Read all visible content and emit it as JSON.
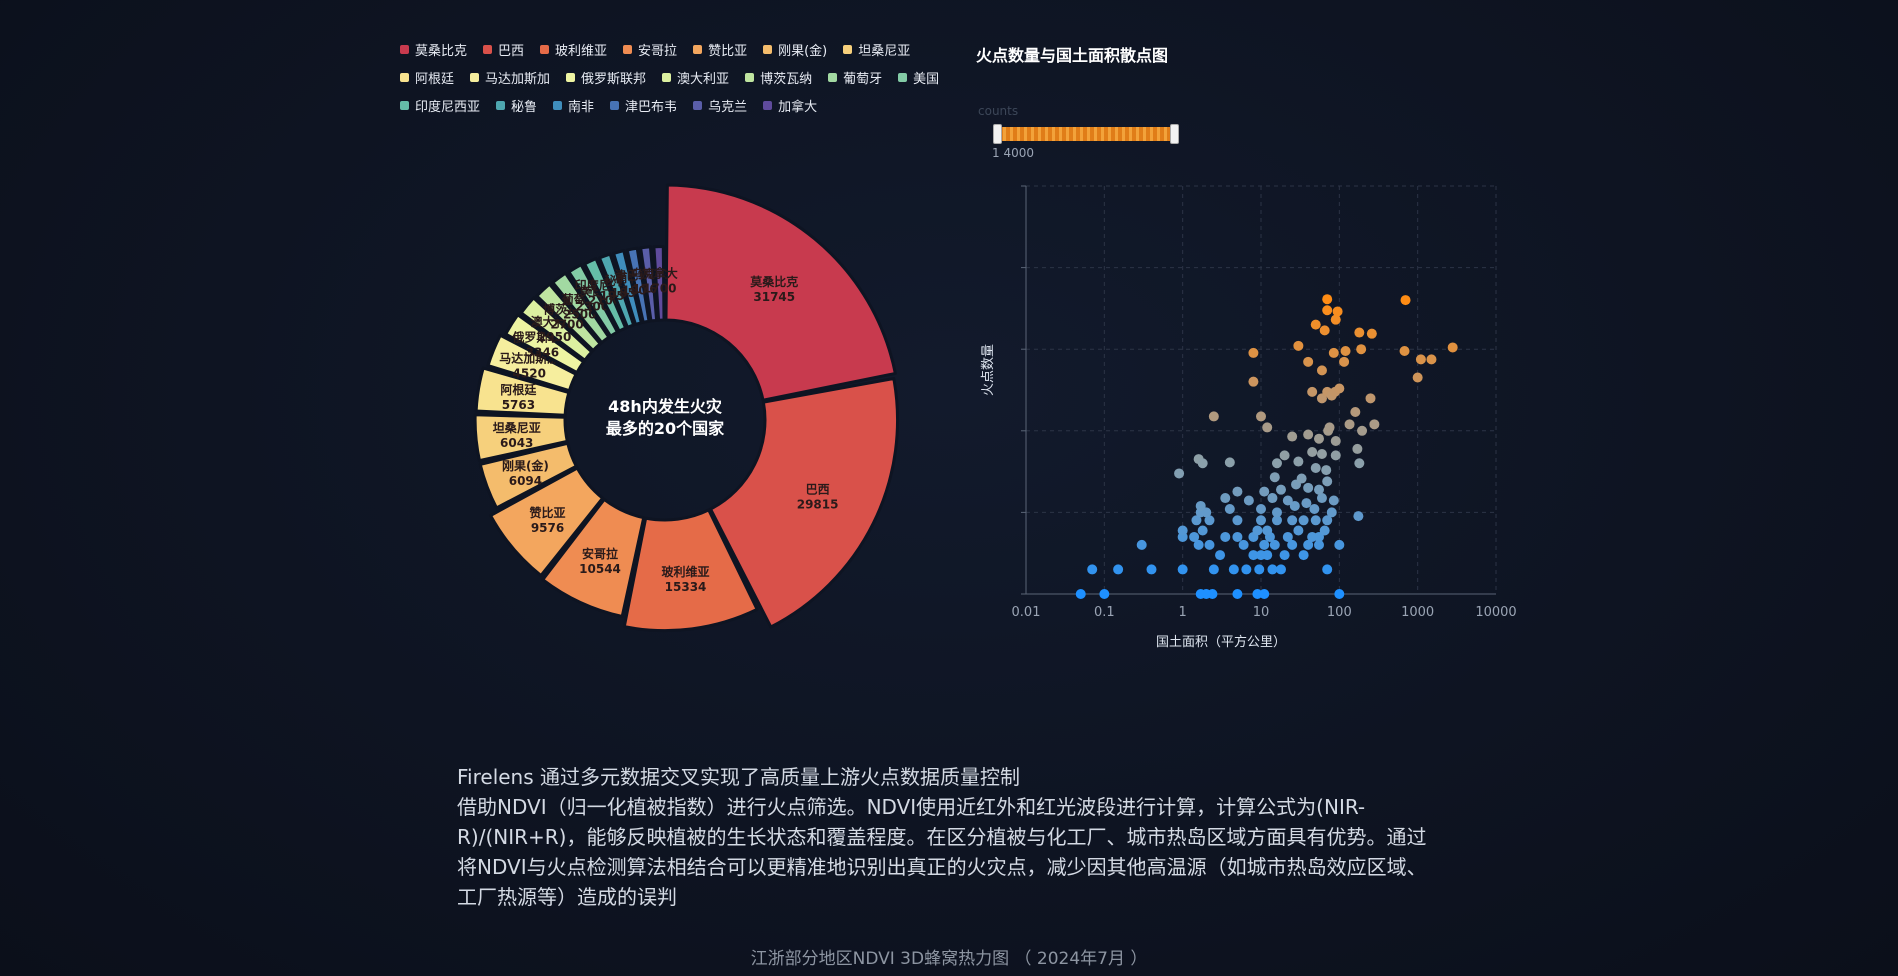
{
  "donut": {
    "center_title": "48h内发生火灾最多的20个国家",
    "center_title_line1": "48h内发生火灾",
    "center_title_line2": "最多的20个国家"
  },
  "scatter": {
    "title": "火点数量与国土面积散点图",
    "visual_map_label": "counts",
    "visual_map_range_text": "1 4000"
  },
  "description": {
    "line1": "Firelens 通过多元数据交叉实现了高质量上游火点数据质量控制",
    "paragraph": "借助NDVI（归一化植被指数）进行火点筛选。NDVI使用近红外和红光波段进行计算，计算公式为(NIR-R)/(NIR+R)，能够反映植被的生长状态和覆盖程度。在区分植被与化工厂、城市热岛区域方面具有优势。通过将NDVI与火点检测算法相结合可以更精准地识别出真正的火灾点，减少因其他高温源（如城市热岛效应区域、工厂热源等）造成的误判"
  },
  "footer": {
    "caption": "江浙部分地区NDVI 3D蜂窝热力图 （ 2024年7月 ）"
  },
  "chart_data": [
    {
      "type": "pie",
      "variant": "rose-donut",
      "legend_placement": "top-left",
      "legend": [
        "莫桑比克",
        "巴西",
        "玻利维亚",
        "安哥拉",
        "赞比亚",
        "刚果(金)",
        "坦桑尼亚",
        "阿根廷",
        "马达加斯加",
        "俄罗斯联邦",
        "澳大利亚",
        "博茨瓦纳",
        "葡萄牙",
        "美国",
        "印度尼西亚",
        "秘鲁",
        "南非",
        "津巴布韦",
        "乌克兰",
        "加拿大"
      ],
      "slices": [
        {
          "name": "莫桑比克",
          "value": 31745,
          "color": "#c83a4e"
        },
        {
          "name": "巴西",
          "value": 29815,
          "color": "#d9514a"
        },
        {
          "name": "玻利维亚",
          "value": 15334,
          "color": "#e56b48"
        },
        {
          "name": "安哥拉",
          "value": 10544,
          "color": "#ef8c52"
        },
        {
          "name": "赞比亚",
          "value": 9576,
          "color": "#f3a65e"
        },
        {
          "name": "刚果(金)",
          "value": 6094,
          "color": "#f4bc6c"
        },
        {
          "name": "坦桑尼亚",
          "value": 6043,
          "color": "#f6d07c"
        },
        {
          "name": "阿根廷",
          "value": 5763,
          "color": "#f8e38f"
        },
        {
          "name": "马达加斯加",
          "value": 4520,
          "color": "#f6ee9e"
        },
        {
          "name": "俄罗斯联邦",
          "value": 3346,
          "color": "#eef4a2"
        },
        {
          "name": "澳大利亚",
          "value": 2950,
          "color": "#dcf0a0"
        },
        {
          "name": "博茨瓦纳",
          "value": 2700,
          "color": "#bfe5a0"
        },
        {
          "name": "葡萄牙",
          "value": 2500,
          "color": "#a2d9a2"
        },
        {
          "name": "美国",
          "value": 2300,
          "color": "#83cba6"
        },
        {
          "name": "印度尼西亚",
          "value": 2100,
          "color": "#65bda8"
        },
        {
          "name": "秘鲁",
          "value": 1950,
          "color": "#4ea7b0"
        },
        {
          "name": "南非",
          "value": 1850,
          "color": "#3f8dbc"
        },
        {
          "name": "津巴布韦",
          "value": 1800,
          "color": "#4773b5"
        },
        {
          "name": "乌克兰",
          "value": 1760,
          "color": "#5a5ea9"
        },
        {
          "name": "加拿大",
          "value": 1700,
          "color": "#5f4b9c"
        }
      ]
    },
    {
      "type": "scatter",
      "title": "火点数量与国土面积散点图",
      "xlabel": "国土面积（平方公里）",
      "ylabel": "火点数量",
      "xscale": "log",
      "xlim": [
        0.01,
        10000
      ],
      "xticks": [
        "0.01",
        "0.1",
        "1",
        "10",
        "100",
        "1000",
        "10000"
      ],
      "yscale": "log",
      "ylim": [
        1,
        100000
      ],
      "y_tick_labels_shown": false,
      "grid": true,
      "color_by": "counts",
      "color_range": [
        1,
        4000
      ],
      "points": [
        [
          0.05,
          1
        ],
        [
          0.1,
          1
        ],
        [
          1.7,
          1
        ],
        [
          2,
          1
        ],
        [
          2.4,
          1
        ],
        [
          5,
          1
        ],
        [
          9,
          1
        ],
        [
          11,
          1
        ],
        [
          100,
          1
        ],
        [
          0.07,
          2
        ],
        [
          0.15,
          2
        ],
        [
          0.4,
          2
        ],
        [
          1,
          2
        ],
        [
          2.5,
          2
        ],
        [
          4.5,
          2
        ],
        [
          6.5,
          2
        ],
        [
          9.5,
          2
        ],
        [
          14,
          2
        ],
        [
          18,
          2
        ],
        [
          70,
          2
        ],
        [
          3,
          3
        ],
        [
          8,
          3
        ],
        [
          10,
          3
        ],
        [
          12,
          3
        ],
        [
          20,
          3
        ],
        [
          35,
          3
        ],
        [
          0.3,
          4
        ],
        [
          1.6,
          4
        ],
        [
          2.2,
          4
        ],
        [
          6,
          4
        ],
        [
          11,
          4
        ],
        [
          15,
          4
        ],
        [
          25,
          4
        ],
        [
          40,
          4
        ],
        [
          55,
          4
        ],
        [
          100,
          4
        ],
        [
          1,
          5
        ],
        [
          1.4,
          5
        ],
        [
          3.5,
          5
        ],
        [
          5,
          5
        ],
        [
          8,
          5
        ],
        [
          13,
          5
        ],
        [
          22,
          5
        ],
        [
          45,
          5
        ],
        [
          55,
          5
        ],
        [
          1,
          6
        ],
        [
          1.8,
          6
        ],
        [
          9,
          6
        ],
        [
          12,
          6
        ],
        [
          30,
          6
        ],
        [
          65,
          6
        ],
        [
          1.5,
          8
        ],
        [
          2.2,
          8
        ],
        [
          5,
          8
        ],
        [
          10,
          8
        ],
        [
          16,
          8
        ],
        [
          25,
          8
        ],
        [
          35,
          8
        ],
        [
          50,
          8
        ],
        [
          70,
          8
        ],
        [
          175,
          9
        ],
        [
          1.7,
          10
        ],
        [
          2,
          10
        ],
        [
          4,
          11
        ],
        [
          10,
          11
        ],
        [
          16,
          10
        ],
        [
          27,
          12
        ],
        [
          48,
          11
        ],
        [
          80,
          10
        ],
        [
          1.7,
          12
        ],
        [
          3.5,
          15
        ],
        [
          7,
          14
        ],
        [
          14,
          15
        ],
        [
          22,
          14
        ],
        [
          38,
          13
        ],
        [
          60,
          15
        ],
        [
          85,
          14
        ],
        [
          18,
          19
        ],
        [
          5,
          18
        ],
        [
          11,
          18
        ],
        [
          28,
          22
        ],
        [
          40,
          20
        ],
        [
          55,
          19
        ],
        [
          70,
          24
        ],
        [
          15,
          27
        ],
        [
          33,
          26
        ],
        [
          68,
          33
        ],
        [
          0.9,
          30
        ],
        [
          1.6,
          45
        ],
        [
          1.8,
          40
        ],
        [
          4,
          41
        ],
        [
          30,
          42
        ],
        [
          50,
          35
        ],
        [
          16,
          40
        ],
        [
          20,
          50
        ],
        [
          45,
          55
        ],
        [
          60,
          52
        ],
        [
          90,
          50
        ],
        [
          170,
          60
        ],
        [
          180,
          40
        ],
        [
          25,
          85
        ],
        [
          40,
          90
        ],
        [
          55,
          80
        ],
        [
          72,
          100
        ],
        [
          90,
          75
        ],
        [
          195,
          100
        ],
        [
          2.5,
          150
        ],
        [
          10,
          150
        ],
        [
          12,
          110
        ],
        [
          75,
          110
        ],
        [
          135,
          120
        ],
        [
          280,
          120
        ],
        [
          160,
          170
        ],
        [
          45,
          300
        ],
        [
          60,
          250
        ],
        [
          70,
          300
        ],
        [
          80,
          270
        ],
        [
          88,
          300
        ],
        [
          100,
          330
        ],
        [
          250,
          250
        ],
        [
          8,
          900
        ],
        [
          8,
          400
        ],
        [
          40,
          700
        ],
        [
          60,
          550
        ],
        [
          85,
          900
        ],
        [
          120,
          950
        ],
        [
          115,
          700
        ],
        [
          30,
          1100
        ],
        [
          190,
          1000
        ],
        [
          680,
          950
        ],
        [
          1000,
          450
        ],
        [
          1500,
          750
        ],
        [
          2800,
          1050
        ],
        [
          1100,
          750
        ],
        [
          70,
          3000
        ],
        [
          90,
          2300
        ],
        [
          50,
          2000
        ],
        [
          65,
          1700
        ],
        [
          180,
          1600
        ],
        [
          260,
          1550
        ],
        [
          700,
          4000
        ],
        [
          70,
          4100
        ],
        [
          95,
          2900
        ]
      ]
    }
  ]
}
